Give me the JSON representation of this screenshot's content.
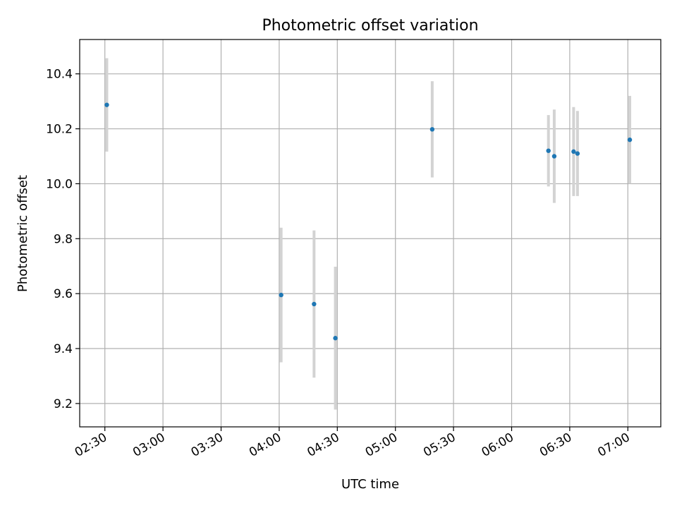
{
  "chart_data": {
    "type": "scatter",
    "title": "Photometric offset variation",
    "xlabel": "UTC time",
    "ylabel": "Photometric offset",
    "x_tick_labels": [
      "02:30",
      "03:00",
      "03:30",
      "04:00",
      "04:30",
      "05:00",
      "05:30",
      "06:00",
      "06:30",
      "07:00"
    ],
    "x_tick_minutes": [
      150,
      180,
      210,
      240,
      270,
      300,
      330,
      360,
      390,
      420
    ],
    "xlim_minutes": [
      137,
      437
    ],
    "y_tick_labels": [
      "9.2",
      "9.4",
      "9.6",
      "9.8",
      "10.0",
      "10.2",
      "10.4"
    ],
    "y_ticks": [
      9.2,
      9.4,
      9.6,
      9.8,
      10.0,
      10.2,
      10.4
    ],
    "ylim": [
      9.115,
      10.525
    ],
    "grid": true,
    "point_color": "#1f77b4",
    "errorbar_color": "#d3d3d3",
    "points": [
      {
        "time": "02:31",
        "minutes": 151,
        "y": 10.287,
        "err": 0.17
      },
      {
        "time": "04:01",
        "minutes": 241,
        "y": 9.595,
        "err": 0.245
      },
      {
        "time": "04:18",
        "minutes": 258,
        "y": 9.562,
        "err": 0.268
      },
      {
        "time": "04:29",
        "minutes": 269,
        "y": 9.438,
        "err": 0.26
      },
      {
        "time": "05:19",
        "minutes": 319,
        "y": 10.198,
        "err": 0.175
      },
      {
        "time": "06:19",
        "minutes": 379,
        "y": 10.12,
        "err": 0.13
      },
      {
        "time": "06:22",
        "minutes": 382,
        "y": 10.1,
        "err": 0.17
      },
      {
        "time": "06:32",
        "minutes": 392,
        "y": 10.117,
        "err": 0.162
      },
      {
        "time": "06:34",
        "minutes": 394,
        "y": 10.11,
        "err": 0.155
      },
      {
        "time": "07:01",
        "minutes": 421,
        "y": 10.16,
        "err": 0.16
      }
    ]
  }
}
